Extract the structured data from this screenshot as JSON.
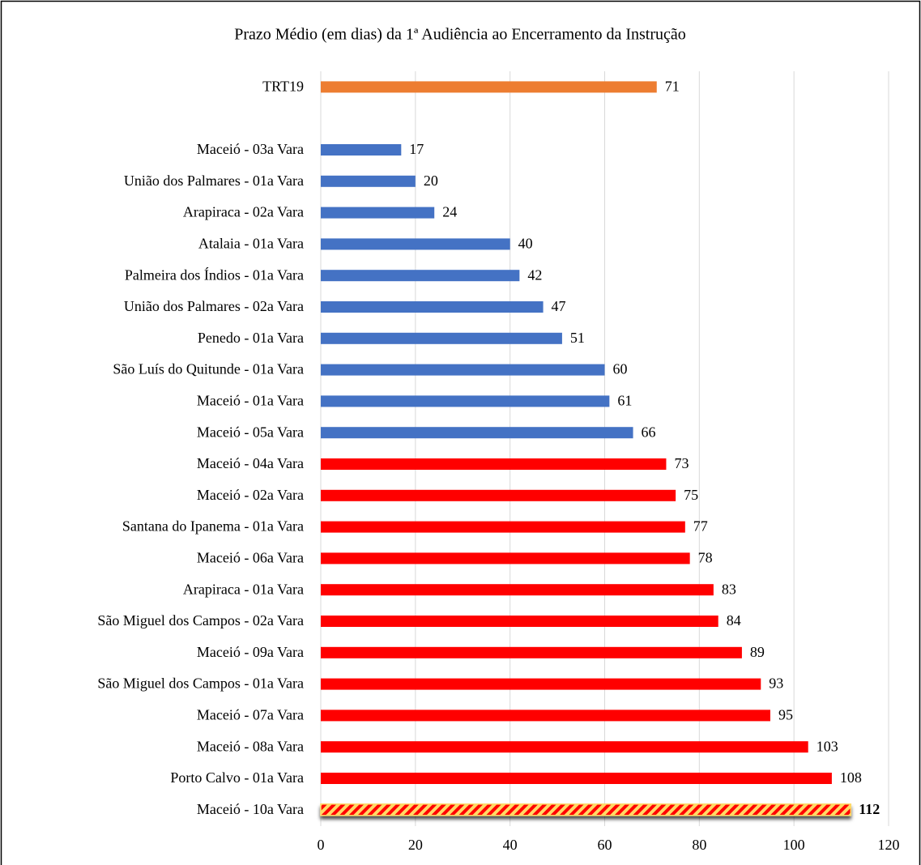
{
  "chart_data": {
    "type": "bar",
    "orientation": "horizontal",
    "title": "Prazo Médio (em dias) da 1ª Audiência ao Encerramento da Instrução",
    "categories": [
      "TRT19",
      null,
      "Maceió - 03a Vara",
      "União dos Palmares - 01a Vara",
      "Arapiraca - 02a Vara",
      "Atalaia - 01a Vara",
      "Palmeira dos Índios - 01a Vara",
      "União dos Palmares - 02a Vara",
      "Penedo - 01a Vara",
      "São Luís do Quitunde - 01a Vara",
      "Maceió - 01a Vara",
      "Maceió - 05a Vara",
      "Maceió - 04a Vara",
      "Maceió - 02a Vara",
      "Santana do Ipanema - 01a Vara",
      "Maceió - 06a Vara",
      "Arapiraca - 01a Vara",
      "São Miguel dos Campos - 02a Vara",
      "Maceió - 09a Vara",
      "São Miguel dos Campos - 01a Vara",
      "Maceió - 07a Vara",
      "Maceió - 08a Vara",
      "Porto Calvo - 01a Vara",
      "Maceió - 10a Vara"
    ],
    "values": [
      71,
      null,
      17,
      20,
      24,
      40,
      42,
      47,
      51,
      60,
      61,
      66,
      73,
      75,
      77,
      78,
      83,
      84,
      89,
      93,
      95,
      103,
      108,
      112
    ],
    "colors": [
      "#ed7d31",
      null,
      "#4472c4",
      "#4472c4",
      "#4472c4",
      "#4472c4",
      "#4472c4",
      "#4472c4",
      "#4472c4",
      "#4472c4",
      "#4472c4",
      "#4472c4",
      "#ff0000",
      "#ff0000",
      "#ff0000",
      "#ff0000",
      "#ff0000",
      "#ff0000",
      "#ff0000",
      "#ff0000",
      "#ff0000",
      "#ff0000",
      "#ff0000",
      "#ff0000"
    ],
    "hatch": {
      "index": 23,
      "colors": [
        "#ff0000",
        "#ffd966"
      ]
    },
    "xlim": [
      0,
      120
    ],
    "xticks": [
      0,
      20,
      40,
      60,
      80,
      100,
      120
    ],
    "grid": true
  }
}
